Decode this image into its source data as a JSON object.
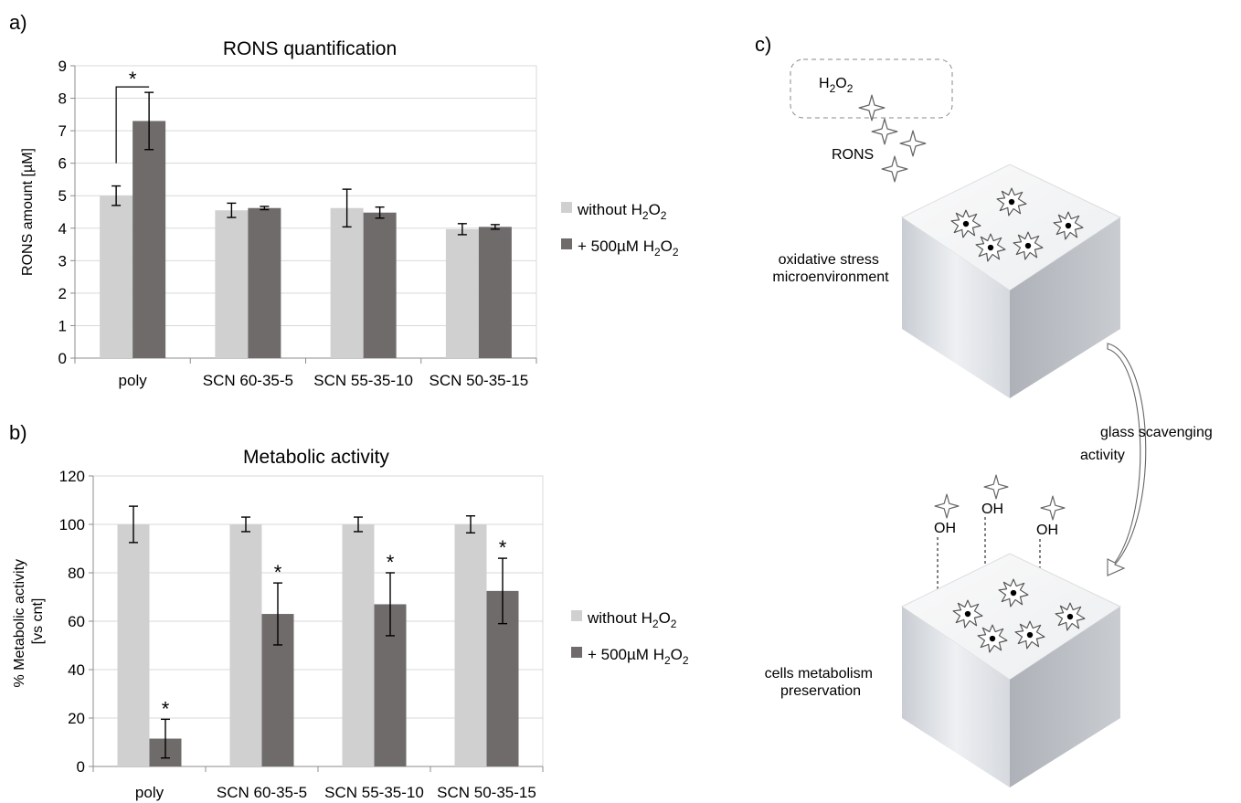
{
  "colors": {
    "without": "#d0d0d0",
    "with": "#6f6b6b"
  },
  "panels": {
    "a": "a)",
    "b": "b)",
    "c": "c)"
  },
  "chart_data": [
    {
      "type": "bar",
      "title": "RONS quantification",
      "ylabel": "RONS amount [µM]",
      "xlabel": "",
      "ylim": [
        0,
        9
      ],
      "yticks": [
        0,
        1,
        2,
        3,
        4,
        5,
        6,
        7,
        8,
        9
      ],
      "categories": [
        "poly",
        "SCN 60-35-5",
        "SCN 55-35-10",
        "SCN 50-35-15"
      ],
      "series": [
        {
          "name": "without H2O2",
          "legend_main": "without H",
          "legend_sub": "2",
          "legend_after": "O",
          "legend_sub2": "2",
          "values": [
            5.0,
            4.55,
            4.62,
            3.97
          ],
          "errors": [
            0.3,
            0.22,
            0.58,
            0.17
          ]
        },
        {
          "name": "+ 500µM H2O2",
          "legend_main": "+ 500µM H",
          "legend_sub": "2",
          "legend_after": "O",
          "legend_sub2": "2",
          "values": [
            7.3,
            4.62,
            4.48,
            4.04
          ],
          "errors": [
            0.88,
            0.05,
            0.17,
            0.07
          ]
        }
      ],
      "annotations": [
        {
          "text": "*",
          "category": "poly",
          "type": "bracket"
        }
      ],
      "grid": true,
      "legend": "right"
    },
    {
      "type": "bar",
      "title": "Metabolic activity",
      "ylabel_line1": "% Metabolic activity",
      "ylabel_line2": "[vs cnt]",
      "xlabel": "",
      "ylim": [
        0,
        120
      ],
      "yticks": [
        0,
        20,
        40,
        60,
        80,
        100,
        120
      ],
      "categories": [
        "poly",
        "SCN 60-35-5",
        "SCN 55-35-10",
        "SCN 50-35-15"
      ],
      "series": [
        {
          "name": "without H2O2",
          "legend_main": "without H",
          "legend_sub": "2",
          "legend_after": "O",
          "legend_sub2": "2",
          "values": [
            100,
            100,
            100,
            100
          ],
          "errors": [
            7.5,
            3,
            3,
            3.5
          ]
        },
        {
          "name": "+ 500µM H2O2",
          "legend_main": "+ 500µM H",
          "legend_sub": "2",
          "legend_after": "O",
          "legend_sub2": "2",
          "values": [
            11.5,
            63,
            67,
            72.5
          ],
          "errors": [
            8,
            12.8,
            13,
            13.5
          ]
        }
      ],
      "annotations": [
        {
          "text": "*",
          "category": "poly"
        },
        {
          "text": "*",
          "category": "SCN 60-35-5"
        },
        {
          "text": "*",
          "category": "SCN 55-35-10"
        },
        {
          "text": "*",
          "category": "SCN 50-35-15"
        }
      ],
      "grid": true,
      "legend": "right"
    }
  ],
  "diagram": {
    "h2o2_main": "H",
    "h2o2_sub1": "2",
    "h2o2_mid": "O",
    "h2o2_sub2": "2",
    "rons": "RONS",
    "top_label_line1": "oxidative stress",
    "top_label_line2": "microenvironment",
    "arrow_label_line1": "glass scavenging",
    "arrow_label_line2": "activity",
    "oh_label": "OH",
    "bottom_label_line1": "cells metabolism",
    "bottom_label_line2": "preservation"
  }
}
